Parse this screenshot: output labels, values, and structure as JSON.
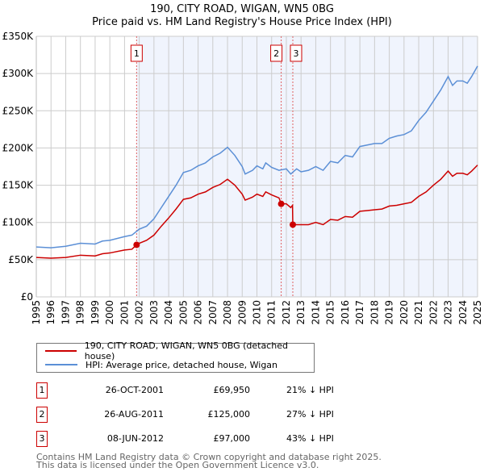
{
  "chart_data": {
    "type": "line",
    "title": "190, CITY ROAD, WIGAN, WN5 0BG",
    "subtitle": "Price paid vs. HM Land Registry's House Price Index (HPI)",
    "xlim": [
      1995,
      2025
    ],
    "ylim": [
      0,
      350000
    ],
    "y_ticks": [
      0,
      50000,
      100000,
      150000,
      200000,
      250000,
      300000,
      350000
    ],
    "y_tick_labels": [
      "£0",
      "£50K",
      "£100K",
      "£150K",
      "£200K",
      "£250K",
      "£300K",
      "£350K"
    ],
    "x_ticks": [
      "1995",
      "1996",
      "1997",
      "1998",
      "1999",
      "2000",
      "2001",
      "2002",
      "2003",
      "2004",
      "2005",
      "2006",
      "2007",
      "2008",
      "2009",
      "2010",
      "2011",
      "2012",
      "2013",
      "2014",
      "2015",
      "2016",
      "2017",
      "2018",
      "2019",
      "2020",
      "2021",
      "2022",
      "2023",
      "2024",
      "2025"
    ],
    "grid": true,
    "colors": {
      "property": "#cc0000",
      "hpi": "#5b8fd6",
      "shade": "#f0f4fd"
    },
    "series": [
      {
        "name": "190, CITY ROAD, WIGAN, WN5 0BG (detached house)",
        "key": "property",
        "x": [
          1995,
          1996,
          1997,
          1998,
          1999,
          1999.5,
          2000,
          2001,
          2001.5,
          2001.82,
          2002,
          2002.5,
          2003,
          2003.5,
          2004,
          2004.5,
          2005,
          2005.5,
          2006,
          2006.5,
          2007,
          2007.5,
          2008,
          2008.5,
          2009,
          2009.2,
          2009.7,
          2010,
          2010.4,
          2010.6,
          2011,
          2011.5,
          2011.65,
          2012,
          2012.3,
          2012.42,
          2012.44,
          2013,
          2013.5,
          2014,
          2014.5,
          2015,
          2015.5,
          2016,
          2016.5,
          2017,
          2017.5,
          2018,
          2018.5,
          2019,
          2019.5,
          2020,
          2020.5,
          2021,
          2021.5,
          2022,
          2022.5,
          2023,
          2023.3,
          2023.6,
          2024,
          2024.3,
          2024.6,
          2025
        ],
        "values": [
          53,
          52,
          53,
          56,
          55,
          58,
          59,
          63,
          64,
          70,
          72,
          76,
          83,
          95,
          106,
          118,
          131,
          133,
          138,
          141,
          147,
          151,
          158,
          150,
          138,
          130,
          134,
          138,
          135,
          141,
          137,
          133,
          125,
          125,
          120,
          123,
          97,
          97,
          97,
          100,
          97,
          104,
          103,
          108,
          107,
          115,
          116,
          117,
          118,
          122,
          123,
          125,
          127,
          135,
          141,
          150,
          158,
          169,
          162,
          166,
          166,
          164,
          169,
          177
        ]
      },
      {
        "name": "HPI: Average price, detached house, Wigan",
        "key": "hpi",
        "x": [
          1995,
          1996,
          1997,
          1998,
          1999,
          1999.5,
          2000,
          2001,
          2001.5,
          2002,
          2002.5,
          2003,
          2003.5,
          2004,
          2004.5,
          2005,
          2005.5,
          2006,
          2006.5,
          2007,
          2007.5,
          2008,
          2008.5,
          2009,
          2009.2,
          2009.7,
          2010,
          2010.4,
          2010.6,
          2011,
          2011.5,
          2012,
          2012.3,
          2012.7,
          2013,
          2013.5,
          2014,
          2014.5,
          2015,
          2015.5,
          2016,
          2016.5,
          2017,
          2017.5,
          2018,
          2018.5,
          2019,
          2019.5,
          2020,
          2020.5,
          2021,
          2021.5,
          2022,
          2022.5,
          2023,
          2023.3,
          2023.6,
          2024,
          2024.3,
          2024.6,
          2025
        ],
        "values": [
          67,
          66,
          68,
          72,
          71,
          75,
          76,
          81,
          83,
          91,
          95,
          105,
          120,
          135,
          150,
          167,
          170,
          176,
          180,
          188,
          193,
          201,
          190,
          175,
          165,
          170,
          176,
          172,
          180,
          174,
          170,
          172,
          165,
          172,
          168,
          170,
          175,
          170,
          182,
          180,
          190,
          188,
          202,
          204,
          206,
          206,
          213,
          216,
          218,
          223,
          237,
          248,
          263,
          278,
          296,
          284,
          290,
          290,
          287,
          296,
          310
        ],
        "value_unit": "£K"
      }
    ],
    "sales": [
      {
        "label": "1",
        "x": 2001.82,
        "value": 69950,
        "date": "26-OCT-2001",
        "price": "£69,950",
        "hpi": "21% ↓ HPI"
      },
      {
        "label": "2",
        "x": 2011.65,
        "value": 125000,
        "date": "26-AUG-2011",
        "price": "£125,000",
        "hpi": "27% ↓ HPI"
      },
      {
        "label": "3",
        "x": 2012.44,
        "value": 97000,
        "date": "08-JUN-2012",
        "price": "£97,000",
        "hpi": "43% ↓ HPI"
      }
    ]
  },
  "legend": {
    "property": "190, CITY ROAD, WIGAN, WN5 0BG (detached house)",
    "hpi": "HPI: Average price, detached house, Wigan"
  },
  "footer": {
    "line1": "Contains HM Land Registry data © Crown copyright and database right 2025.",
    "line2": "This data is licensed under the Open Government Licence v3.0."
  }
}
